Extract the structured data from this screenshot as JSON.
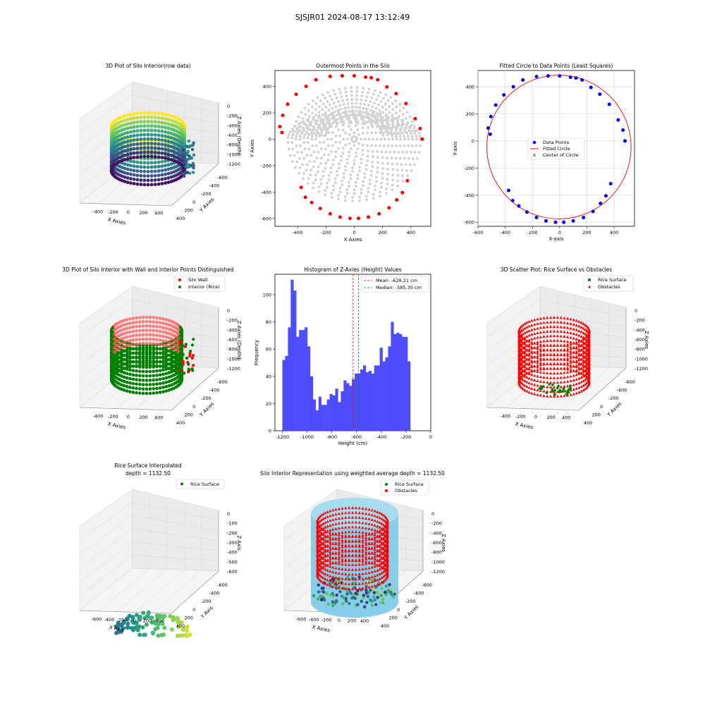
{
  "figure_title": "SJSJR01 2024-08-17 13:12:49",
  "colors": {
    "wall": "#ff0000",
    "rice": "#008000",
    "grey": "#d3d3d3",
    "blue": "#0000ff",
    "hist": "#4d4dff",
    "silo": "#87ceeb",
    "pane": "#f2f2f2",
    "grid": "#d8d8d8"
  },
  "panels": {
    "p1": {
      "title": "3D Plot of Silo Interior(row data)",
      "xlabel": "X Axies",
      "ylabel": "Y Axies",
      "zlabel": "Z Axies (Depth)"
    },
    "p2": {
      "title": "Outermost Points in the Silo",
      "xlabel": "X Axies",
      "ylabel": "Y Axies"
    },
    "p3": {
      "title": "Fitted Circle to Data Points (Least Squares)",
      "xlabel": "X-axis",
      "ylabel": "Y-axis",
      "legend": [
        "Data Points",
        "Fitted Circle",
        "Center of Circle"
      ]
    },
    "p4": {
      "title": "3D Plot of Silo Interior with Wall and Interior Points Distinguished",
      "xlabel": "X Axies",
      "ylabel": "Y Axies",
      "zlabel": "Z Axies (Depth)",
      "legend": [
        "Silo Wall",
        "Interior (Rice)"
      ]
    },
    "p5": {
      "title": "Histogram of Z-Axies (Height) Values",
      "xlabel": "Height (cm)",
      "ylabel": "Frequency",
      "legend": [
        "Mean: -628.21 cm",
        "Median: -585.35 cm"
      ]
    },
    "p6": {
      "title": "3D Scatter Plot: Rice Surface vs Obstacles",
      "xlabel": "X Axies",
      "ylabel": "Y Axies",
      "zlabel": "Z Axies",
      "legend": [
        "Rice Surface",
        "Obstacles"
      ]
    },
    "p7": {
      "title": "Rice Surface Interpolated",
      "subtitle": "depth = 1132.50",
      "xlabel": "X Axis",
      "ylabel": "Y Axis",
      "zlabel": "Z Axis",
      "legend": [
        "Rice Surface"
      ]
    },
    "p8": {
      "title": "Silo Interior Representation using weighted average depth = 1132.50",
      "xlabel": "X Axies",
      "ylabel": "Y Axies",
      "zlabel": "Z Axies",
      "legend": [
        "Rice Surface",
        "Obstacles"
      ]
    }
  },
  "chart_data": [
    {
      "id": "p1",
      "type": "scatter",
      "title": "3D Plot of Silo Interior(row data)",
      "xlabel": "X Axies",
      "ylabel": "Y Axies",
      "zlabel": "Z Axies (Depth)",
      "x_ticks": [
        -400,
        -200,
        0,
        200,
        400
      ],
      "y_ticks": [
        -600,
        -400,
        -200,
        0,
        200,
        400
      ],
      "z_ticks": [
        0,
        -200,
        -400,
        -600,
        -800,
        -1000,
        -1200
      ],
      "zlim": [
        -1200,
        0
      ]
    },
    {
      "id": "p2",
      "type": "scatter",
      "title": "Outermost Points in the Silo",
      "xlabel": "X Axies",
      "ylabel": "Y Axies",
      "xlim": [
        -560,
        540
      ],
      "ylim": [
        -660,
        520
      ],
      "x_ticks": [
        -400,
        -200,
        0,
        200,
        400
      ],
      "y_ticks": [
        -600,
        -400,
        -200,
        0,
        200,
        400
      ],
      "outermost_points": [
        [
          -510,
          50
        ],
        [
          -525,
          95
        ],
        [
          -505,
          180
        ],
        [
          -470,
          265
        ],
        [
          -410,
          340
        ],
        [
          -340,
          400
        ],
        [
          -270,
          450
        ],
        [
          -170,
          475
        ],
        [
          -85,
          480
        ],
        [
          0,
          480
        ],
        [
          80,
          470
        ],
        [
          120,
          465
        ],
        [
          165,
          450
        ],
        [
          230,
          395
        ],
        [
          295,
          345
        ],
        [
          365,
          270
        ],
        [
          430,
          155
        ],
        [
          465,
          80
        ],
        [
          480,
          0
        ],
        [
          375,
          -315
        ],
        [
          340,
          -405
        ],
        [
          300,
          -460
        ],
        [
          245,
          -520
        ],
        [
          175,
          -565
        ],
        [
          100,
          -590
        ],
        [
          30,
          -600
        ],
        [
          -30,
          -600
        ],
        [
          -100,
          -590
        ],
        [
          -170,
          -565
        ],
        [
          -240,
          -525
        ],
        [
          -300,
          -480
        ],
        [
          -345,
          -440
        ],
        [
          -375,
          -365
        ]
      ]
    },
    {
      "id": "p3",
      "type": "scatter",
      "title": "Fitted Circle to Data Points (Least Squares)",
      "xlabel": "X-axis",
      "ylabel": "Y-axis",
      "xlim": [
        -600,
        550
      ],
      "ylim": [
        -630,
        520
      ],
      "x_ticks": [
        -600,
        -400,
        -200,
        0,
        200,
        400
      ],
      "y_ticks": [
        -600,
        -400,
        -200,
        0,
        200,
        400
      ],
      "circle_center": [
        -5,
        -45
      ],
      "circle_radius": 530,
      "legend": [
        "Data Points",
        "Fitted Circle",
        "Center of Circle"
      ]
    },
    {
      "id": "p4",
      "type": "scatter",
      "title": "3D Plot of Silo Interior with Wall and Interior Points Distinguished",
      "xlabel": "X Axies",
      "ylabel": "Y Axies",
      "zlabel": "Z Axies (Depth)",
      "series": [
        {
          "name": "Silo Wall"
        },
        {
          "name": "Interior (Rice)"
        }
      ],
      "x_ticks": [
        -400,
        -200,
        0,
        200,
        400
      ],
      "y_ticks": [
        -600,
        -400,
        -200,
        0,
        200,
        400
      ],
      "z_ticks": [
        0,
        -200,
        -400,
        -600,
        -800,
        -1000,
        -1200
      ]
    },
    {
      "id": "p5",
      "type": "bar",
      "title": "Histogram of Z-Axies (Height) Values",
      "xlabel": "Height (cm)",
      "ylabel": "Frequency",
      "xlim": [
        -1260,
        0
      ],
      "ylim": [
        0,
        115
      ],
      "x_ticks": [
        -1200,
        -1000,
        -800,
        -600,
        -400,
        -200,
        0
      ],
      "y_ticks": [
        0,
        20,
        40,
        60,
        80,
        100
      ],
      "bin_start": -1200,
      "bin_width": 22.5,
      "values": [
        52,
        55,
        76,
        111,
        103,
        69,
        74,
        74,
        76,
        62,
        40,
        23,
        15,
        25,
        19,
        19,
        23,
        27,
        26,
        31,
        21,
        29,
        37,
        35,
        33,
        38,
        42,
        42,
        45,
        48,
        43,
        44,
        42,
        48,
        48,
        61,
        51,
        54,
        62,
        80,
        71,
        72,
        71,
        69,
        69,
        51
      ],
      "mean": -628.21,
      "median": -585.35,
      "legend": [
        "Mean: -628.21 cm",
        "Median: -585.35 cm"
      ]
    },
    {
      "id": "p6",
      "type": "scatter",
      "title": "3D Scatter Plot: Rice Surface vs Obstacles",
      "series": [
        {
          "name": "Rice Surface"
        },
        {
          "name": "Obstacles"
        }
      ],
      "x_ticks": [
        -400,
        -200,
        0,
        200,
        400
      ],
      "y_ticks": [
        -600,
        -400,
        -200,
        0,
        200,
        400
      ],
      "z_ticks": [
        0,
        -200,
        -400,
        -600,
        -800,
        -1000,
        -1200
      ]
    },
    {
      "id": "p7",
      "type": "scatter",
      "title": "Rice Surface Interpolated",
      "subtitle": "depth = 1132.50",
      "series": [
        {
          "name": "Rice Surface"
        }
      ],
      "x_ticks": [
        -600,
        -400,
        -200,
        0,
        200,
        400
      ],
      "y_ticks": [
        -600,
        -400,
        -200,
        0,
        200,
        400
      ],
      "z_ticks": [
        0,
        -100,
        -200,
        -300,
        -400,
        -500,
        -600
      ]
    },
    {
      "id": "p8",
      "type": "scatter",
      "title": "Silo Interior Representation using weighted average depth = 1132.50",
      "series": [
        {
          "name": "Rice Surface"
        },
        {
          "name": "Obstacles"
        }
      ],
      "x_ticks": [
        -600,
        -400,
        -200,
        0,
        200,
        400
      ],
      "y_ticks": [
        -600,
        -400,
        -200,
        0,
        200,
        400
      ],
      "z_ticks": [
        0,
        -200,
        -400,
        -600,
        -800,
        -1000,
        -1200
      ]
    }
  ]
}
